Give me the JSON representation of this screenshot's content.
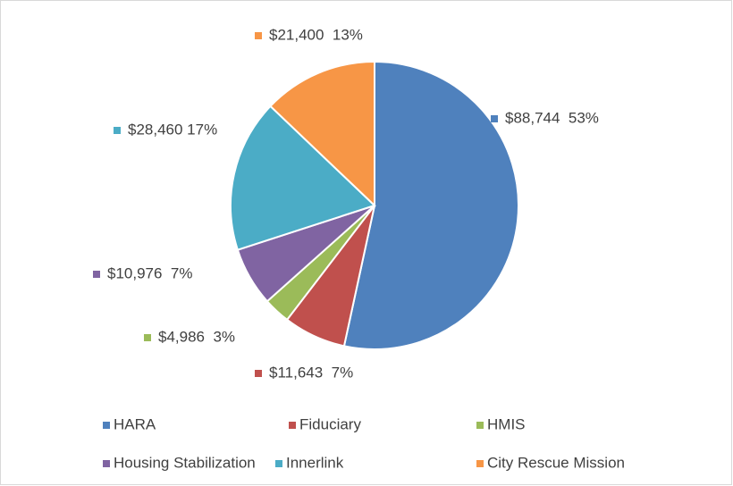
{
  "chart_data": {
    "type": "pie",
    "categories": [
      "HARA",
      "Fiduciary",
      "HMIS",
      "Housing Stabilization",
      "Innerlink",
      "City Rescue Mission"
    ],
    "values": [
      88744,
      11643,
      4986,
      10976,
      28460,
      21400
    ],
    "value_labels": [
      "$88,744  53%",
      "$11,643  7%",
      "$4,986  3%",
      "$10,976  7%",
      "$28,460 17%",
      "$21,400  13%"
    ],
    "colors": [
      "#4f81bd",
      "#c0504d",
      "#9bbb59",
      "#8064a2",
      "#4bacc6",
      "#f79646"
    ],
    "legend": "bottom"
  }
}
